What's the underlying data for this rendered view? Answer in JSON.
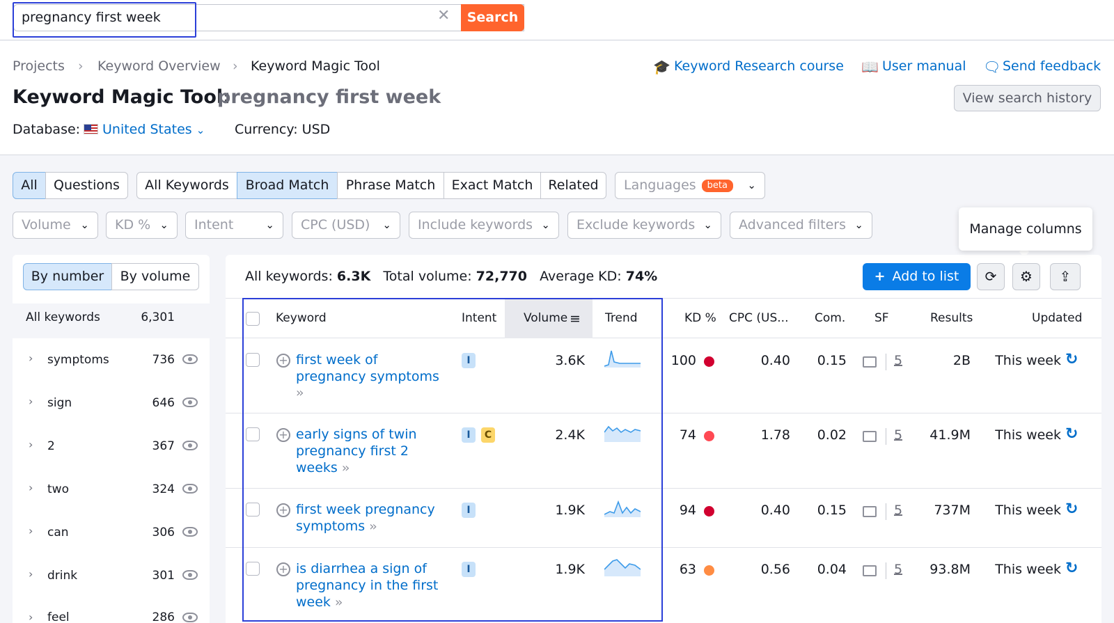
{
  "search": {
    "query": "pregnancy first week",
    "button_label": "Search",
    "clear_icon": "close-icon"
  },
  "breadcrumb": [
    "Projects",
    "Keyword Overview",
    "Keyword Magic Tool"
  ],
  "top_links": {
    "course": "Keyword Research course",
    "manual": "User manual",
    "feedback": "Send feedback"
  },
  "page": {
    "title": "Keyword Magic Tool:",
    "query": "pregnancy first week",
    "history_button": "View search history",
    "database_label": "Database:",
    "database_value": "United States",
    "currency": "Currency: USD"
  },
  "tabs": {
    "type": [
      "All",
      "Questions"
    ],
    "match": [
      "All Keywords",
      "Broad Match",
      "Phrase Match",
      "Exact Match",
      "Related"
    ],
    "languages": "Languages",
    "beta": "beta"
  },
  "filters": [
    "Volume",
    "KD %",
    "Intent",
    "CPC (USD)",
    "Include keywords",
    "Exclude keywords",
    "Advanced filters"
  ],
  "tooltip": "Manage columns",
  "left_panel": {
    "seg": [
      "By number",
      "By volume"
    ],
    "all_label": "All keywords",
    "all_count": "6,301",
    "groups": [
      {
        "label": "symptoms",
        "count": "736"
      },
      {
        "label": "sign",
        "count": "646"
      },
      {
        "label": "2",
        "count": "367"
      },
      {
        "label": "two",
        "count": "324"
      },
      {
        "label": "can",
        "count": "306"
      },
      {
        "label": "drink",
        "count": "301"
      },
      {
        "label": "feel",
        "count": "286"
      }
    ]
  },
  "stats": {
    "all_label": "All keywords:",
    "all_value": "6.3K",
    "volume_label": "Total volume:",
    "volume_value": "72,770",
    "kd_label": "Average KD:",
    "kd_value": "74%"
  },
  "toolbar": {
    "add_label": "Add to list"
  },
  "columns": [
    "Keyword",
    "Intent",
    "Volume",
    "Trend",
    "KD %",
    "CPC (US...",
    "Com.",
    "SF",
    "Results",
    "Updated"
  ],
  "rows": [
    {
      "keyword_lines": [
        "first week of",
        "pregnancy symptoms"
      ],
      "intent": [
        "I"
      ],
      "volume": "3.6K",
      "kd": "100",
      "kd_color": "#d1002f",
      "cpc": "0.40",
      "com": "0.15",
      "sf": "5",
      "results": "2B",
      "updated": "This week"
    },
    {
      "keyword_lines": [
        "early signs of twin",
        "pregnancy first 2",
        "weeks"
      ],
      "intent": [
        "I",
        "C"
      ],
      "volume": "2.4K",
      "kd": "74",
      "kd_color": "#ff4953",
      "cpc": "1.78",
      "com": "0.02",
      "sf": "5",
      "results": "41.9M",
      "updated": "This week"
    },
    {
      "keyword_lines": [
        "first week pregnancy",
        "symptoms"
      ],
      "intent": [
        "I"
      ],
      "volume": "1.9K",
      "kd": "94",
      "kd_color": "#d1002f",
      "cpc": "0.40",
      "com": "0.15",
      "sf": "5",
      "results": "737M",
      "updated": "This week"
    },
    {
      "keyword_lines": [
        "is diarrhea a sign of",
        "pregnancy in the first",
        "week"
      ],
      "intent": [
        "I"
      ],
      "volume": "1.9K",
      "kd": "63",
      "kd_color": "#ff8c43",
      "cpc": "0.56",
      "com": "0.04",
      "sf": "5",
      "results": "93.8M",
      "updated": "This week"
    }
  ]
}
